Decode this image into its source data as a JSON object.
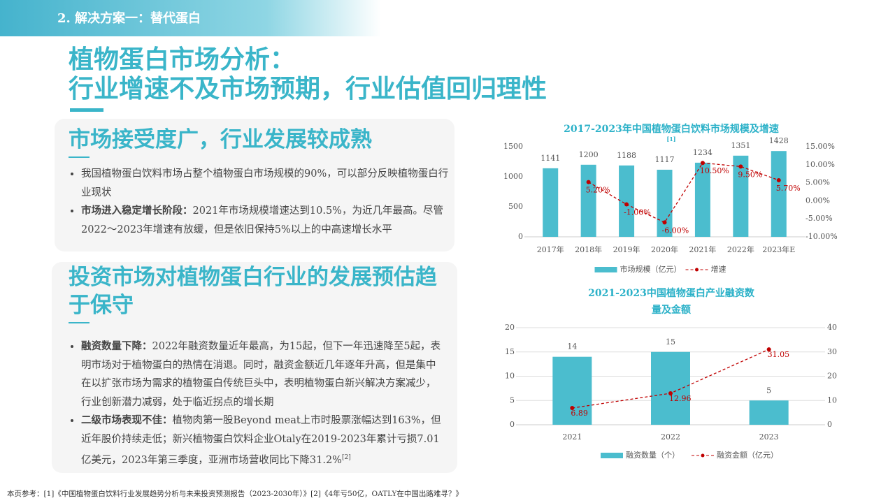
{
  "header": {
    "title": "2. 解决方案一：替代蛋白"
  },
  "main_title": [
    "植物蛋白市场分析：",
    "行业增速不及市场预期，行业估值回归理性"
  ],
  "sections": [
    {
      "heading": "市场接受度广，行业发展较成熟",
      "bullets": [
        {
          "text": "我国植物蛋白饮料市场占整个植物蛋白市场规模的90%，可以部分反映植物蛋白行业现状"
        },
        {
          "bold": "市场进入稳定增长阶段：",
          "text": "2021年市场规模增速达到10.5%，为近几年最高。尽管2022～2023年增速有放缓，但是依旧保持5%以上的中高速增长水平"
        }
      ]
    },
    {
      "heading": "投资市场对植物蛋白行业的发展预估趋于保守",
      "bullets": [
        {
          "bold": "融资数量下降：",
          "text": "2022年融资数量近年最高，为15起，但下一年迅速降至5起，表明市场对于植物蛋白的热情在消退。同时，融资金额近几年逐年升高，但是集中在以扩张市场为需求的植物蛋白传统巨头中，表明植物蛋白新兴解决方案减少，行业创新潜力减弱，处于临近拐点的增长期"
        },
        {
          "bold": "二级市场表现不佳：",
          "text": "植物肉第一股Beyond meat上市时股票涨幅达到163%，但近年股价持续走低；新兴植物蛋白饮料企业Otaly在2019-2023年累计亏损7.01亿美元，2023年第三季度，亚洲市场营收同比下降31.2%",
          "note": "[2]"
        }
      ]
    }
  ],
  "footnote": "本页参考：[1]《中国植物蛋白饮料行业发展趋势分析与未来投资预测报告（2023-2030年）》[2]《4年亏50亿，OATLY在中国出路难寻？》",
  "chart_data": [
    {
      "type": "bar",
      "title": "2017-2023年中国植物蛋白饮料市场规模及增速",
      "title_note": "[1]",
      "categories": [
        "2017年",
        "2018年",
        "2019年",
        "2020年",
        "2021年",
        "2022年",
        "2023年E"
      ],
      "series": [
        {
          "name": "市场规模（亿元）",
          "type": "bar",
          "color": "#4bbdce",
          "values": [
            1141,
            1200,
            1188,
            1117,
            1234,
            1351,
            1428
          ]
        },
        {
          "name": "增速",
          "type": "line",
          "axis": "y2",
          "color": "#c00000",
          "values": [
            null,
            5.2,
            -1.0,
            -6.0,
            10.5,
            9.5,
            5.7
          ],
          "value_labels": [
            null,
            "5.20%",
            "-1.00%",
            "-6.00%",
            "10.50%",
            "9.50%",
            "5.70%"
          ]
        }
      ],
      "ylim": [
        0,
        1500
      ],
      "yticks": [
        0,
        500,
        1000,
        1500
      ],
      "y2lim": [
        -10,
        15
      ],
      "y2ticks": [
        {
          "value": -10,
          "label": "-10.00%"
        },
        {
          "value": -5,
          "label": "-5.00%"
        },
        {
          "value": 0,
          "label": "0.00%"
        },
        {
          "value": 5,
          "label": "5.00%"
        },
        {
          "value": 10,
          "label": "10.00%"
        },
        {
          "value": 15,
          "label": "15.00%"
        }
      ],
      "grid": false
    },
    {
      "type": "bar",
      "title": "2021-2023中国植物蛋白产业融资数量及金额",
      "categories": [
        "2021",
        "2022",
        "2023"
      ],
      "series": [
        {
          "name": "融资数量（个）",
          "type": "bar",
          "color": "#4bbdce",
          "values": [
            14,
            15,
            5
          ]
        },
        {
          "name": "融资金额（亿元）",
          "type": "line",
          "axis": "y2",
          "color": "#c00000",
          "values": [
            6.89,
            12.96,
            31.05
          ]
        }
      ],
      "ylim": [
        0,
        20
      ],
      "yticks": [
        0,
        5,
        10,
        15,
        20
      ],
      "y2lim": [
        0,
        40
      ],
      "y2ticks": [
        0,
        10,
        20,
        30,
        40
      ],
      "grid": true
    }
  ]
}
